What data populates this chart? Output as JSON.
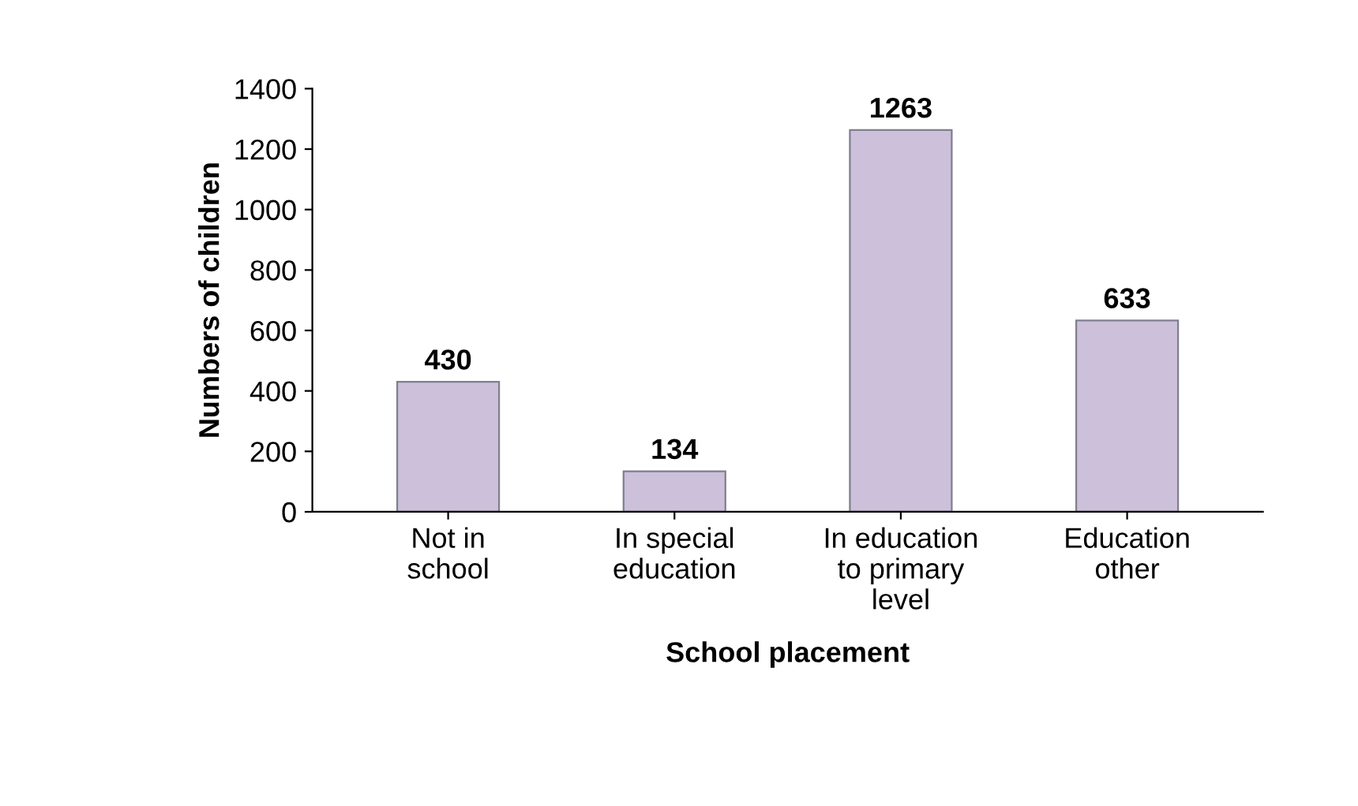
{
  "chart_data": {
    "type": "bar",
    "xlabel": "School placement",
    "ylabel": "Numbers of children",
    "categories": [
      "Not in\nschool",
      "In special\neducation",
      "In education\nto primary\nlevel",
      "Education\nother"
    ],
    "values": [
      430,
      134,
      1263,
      633
    ],
    "color": "#ccc0da",
    "ylim": [
      0,
      1400
    ],
    "yticks": [
      0,
      200,
      400,
      600,
      800,
      1000,
      1200,
      1400
    ],
    "grid": false,
    "data_labels": true
  }
}
